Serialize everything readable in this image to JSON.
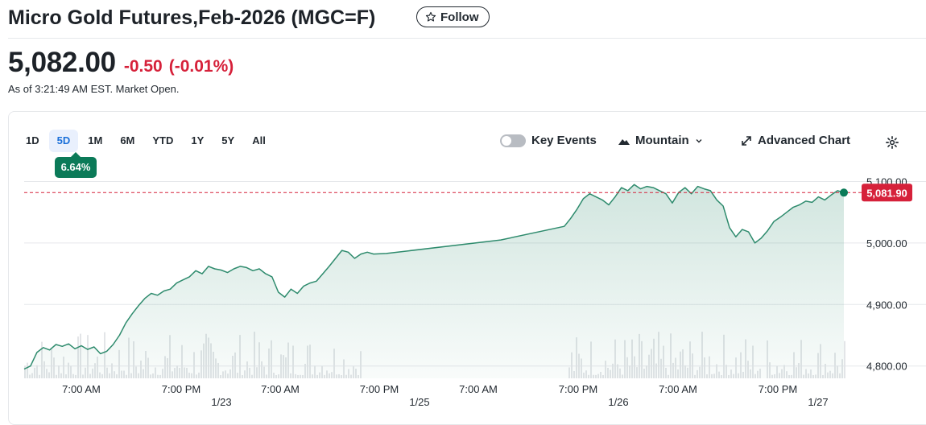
{
  "header": {
    "title": "Micro Gold Futures,Feb-2026 (MGC=F)",
    "follow_label": "Follow"
  },
  "quote": {
    "price": "5,082.00",
    "change": "-0.50",
    "change_pct": "(-0.01%)",
    "status": "As of 3:21:49 AM EST. Market Open."
  },
  "toolbar": {
    "ranges": [
      "1D",
      "5D",
      "1M",
      "6M",
      "YTD",
      "1Y",
      "5Y",
      "All"
    ],
    "active_range": "5D",
    "range_change": "6.64%",
    "key_events_label": "Key Events",
    "chart_type_label": "Mountain",
    "advanced_chart_label": "Advanced Chart"
  },
  "colors": {
    "line": "#2e8b6d",
    "fill": "#2e8b6d",
    "negative": "#d6213a",
    "badge": "#0b7a58"
  },
  "chart_data": {
    "type": "area",
    "y_ticks": [
      "5,100.00",
      "5,000.00",
      "4,900.00",
      "4,800.00"
    ],
    "y_tick_values": [
      5100,
      5000,
      4900,
      4800
    ],
    "ylim": [
      4780,
      5115
    ],
    "x_time_labels": [
      "7:00 AM",
      "7:00 PM",
      "7:00 AM",
      "7:00 PM",
      "7:00 AM",
      "7:00 PM",
      "7:00 AM",
      "7:00 PM"
    ],
    "x_date_labels": [
      "1/23",
      "1/25",
      "1/26",
      "1/27"
    ],
    "current_price_label": "5,081.90",
    "current_price": 5081.9,
    "series": [
      {
        "values": [
          [
            0,
            4795
          ],
          [
            2,
            4800
          ],
          [
            4,
            4822
          ],
          [
            6,
            4830
          ],
          [
            8,
            4826
          ],
          [
            10,
            4835
          ],
          [
            12,
            4832
          ],
          [
            14,
            4836
          ],
          [
            16,
            4828
          ],
          [
            18,
            4833
          ],
          [
            20,
            4827
          ],
          [
            22,
            4831
          ],
          [
            24,
            4820
          ],
          [
            26,
            4824
          ],
          [
            28,
            4835
          ],
          [
            30,
            4850
          ],
          [
            32,
            4870
          ],
          [
            34,
            4885
          ],
          [
            36,
            4898
          ],
          [
            38,
            4910
          ],
          [
            40,
            4918
          ],
          [
            42,
            4915
          ],
          [
            44,
            4922
          ],
          [
            46,
            4925
          ],
          [
            48,
            4935
          ],
          [
            50,
            4940
          ],
          [
            52,
            4945
          ],
          [
            54,
            4955
          ],
          [
            56,
            4950
          ],
          [
            58,
            4962
          ],
          [
            60,
            4958
          ],
          [
            62,
            4956
          ],
          [
            64,
            4952
          ],
          [
            66,
            4958
          ],
          [
            68,
            4962
          ],
          [
            70,
            4960
          ],
          [
            72,
            4955
          ],
          [
            74,
            4958
          ],
          [
            76,
            4950
          ],
          [
            78,
            4945
          ],
          [
            80,
            4920
          ],
          [
            82,
            4912
          ],
          [
            84,
            4925
          ],
          [
            86,
            4918
          ],
          [
            88,
            4930
          ],
          [
            90,
            4935
          ],
          [
            92,
            4938
          ],
          [
            94,
            4950
          ],
          [
            96,
            4962
          ],
          [
            98,
            4975
          ],
          [
            100,
            4988
          ],
          [
            102,
            4985
          ],
          [
            104,
            4975
          ],
          [
            106,
            4982
          ],
          [
            108,
            4985
          ],
          [
            110,
            4982
          ],
          [
            114,
            4983
          ],
          [
            150,
            5005
          ],
          [
            170,
            5027
          ],
          [
            172,
            5040
          ],
          [
            174,
            5055
          ],
          [
            176,
            5072
          ],
          [
            178,
            5080
          ],
          [
            180,
            5075
          ],
          [
            182,
            5070
          ],
          [
            184,
            5062
          ],
          [
            186,
            5075
          ],
          [
            188,
            5090
          ],
          [
            190,
            5085
          ],
          [
            192,
            5095
          ],
          [
            194,
            5088
          ],
          [
            196,
            5092
          ],
          [
            198,
            5090
          ],
          [
            200,
            5085
          ],
          [
            202,
            5080
          ],
          [
            204,
            5065
          ],
          [
            206,
            5082
          ],
          [
            208,
            5090
          ],
          [
            210,
            5080
          ],
          [
            212,
            5092
          ],
          [
            214,
            5088
          ],
          [
            216,
            5085
          ],
          [
            218,
            5070
          ],
          [
            220,
            5060
          ],
          [
            222,
            5025
          ],
          [
            224,
            5010
          ],
          [
            226,
            5022
          ],
          [
            228,
            5018
          ],
          [
            230,
            5000
          ],
          [
            232,
            5008
          ],
          [
            234,
            5020
          ],
          [
            236,
            5035
          ],
          [
            238,
            5042
          ],
          [
            240,
            5050
          ],
          [
            242,
            5058
          ],
          [
            244,
            5062
          ],
          [
            246,
            5068
          ],
          [
            248,
            5066
          ],
          [
            250,
            5075
          ],
          [
            252,
            5070
          ],
          [
            254,
            5078
          ],
          [
            256,
            5085
          ],
          [
            258,
            5081.9
          ]
        ]
      }
    ],
    "grid": true,
    "volume_bars": true
  }
}
